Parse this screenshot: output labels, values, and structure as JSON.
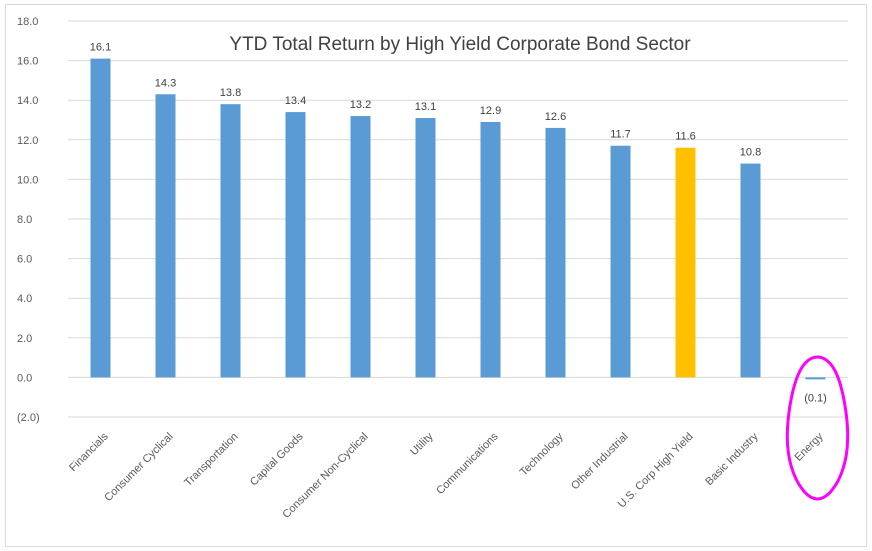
{
  "chart_data": {
    "type": "bar",
    "title": "YTD Total Return by High Yield Corporate Bond Sector",
    "xlabel": "",
    "ylabel": "",
    "ylim": [
      -2,
      18
    ],
    "yticks": [
      -2,
      0,
      2,
      4,
      6,
      8,
      10,
      12,
      14,
      16,
      18
    ],
    "ytick_labels": [
      "(2.0)",
      "0.0",
      "2.0",
      "4.0",
      "6.0",
      "8.0",
      "10.0",
      "12.0",
      "14.0",
      "16.0",
      "18.0"
    ],
    "grid": true,
    "legend": "none",
    "categories": [
      "Financials",
      "Consumer Cyclical",
      "Transportation",
      "Capital Goods",
      "Consumer Non-Cyclical",
      "Utility",
      "Communications",
      "Technology",
      "Other Industrial",
      "U.S. Corp High Yield",
      "Basic Industry",
      "Energy"
    ],
    "values": [
      16.1,
      14.3,
      13.8,
      13.4,
      13.2,
      13.1,
      12.9,
      12.6,
      11.7,
      11.6,
      10.8,
      -0.1
    ],
    "data_labels": [
      "16.1",
      "14.3",
      "13.8",
      "13.4",
      "13.2",
      "13.1",
      "12.9",
      "12.6",
      "11.7",
      "11.6",
      "10.8",
      "(0.1)"
    ],
    "bar_color": "#5b9bd5",
    "highlight_color": "#ffc000",
    "highlight_category": "U.S. Corp High Yield",
    "annotation_color": "#ff00ff",
    "annotation_target": "Energy"
  }
}
